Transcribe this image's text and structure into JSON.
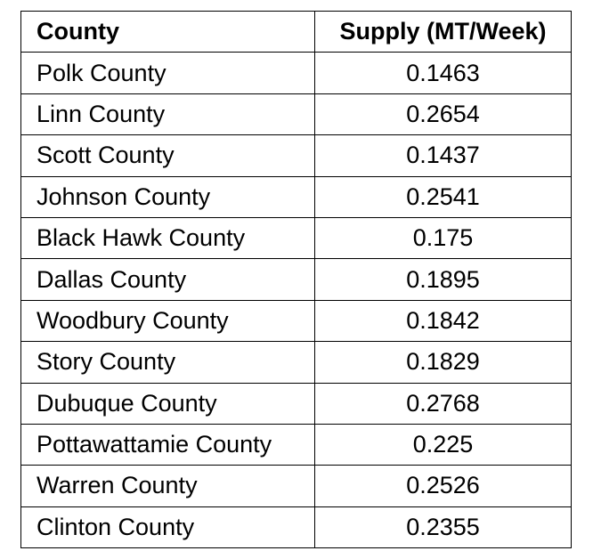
{
  "table": {
    "headers": [
      "County",
      "Supply (MT/Week)"
    ],
    "rows": [
      {
        "county": "Polk County",
        "supply": "0.1463"
      },
      {
        "county": "Linn County",
        "supply": "0.2654"
      },
      {
        "county": "Scott County",
        "supply": "0.1437"
      },
      {
        "county": "Johnson County",
        "supply": "0.2541"
      },
      {
        "county": "Black Hawk County",
        "supply": "0.175"
      },
      {
        "county": "Dallas County",
        "supply": "0.1895"
      },
      {
        "county": "Woodbury County",
        "supply": "0.1842"
      },
      {
        "county": "Story County",
        "supply": "0.1829"
      },
      {
        "county": "Dubuque County",
        "supply": "0.2768"
      },
      {
        "county": "Pottawattamie County",
        "supply": "0.225"
      },
      {
        "county": "Warren County",
        "supply": "0.2526"
      },
      {
        "county": "Clinton County",
        "supply": "0.2355"
      }
    ]
  }
}
